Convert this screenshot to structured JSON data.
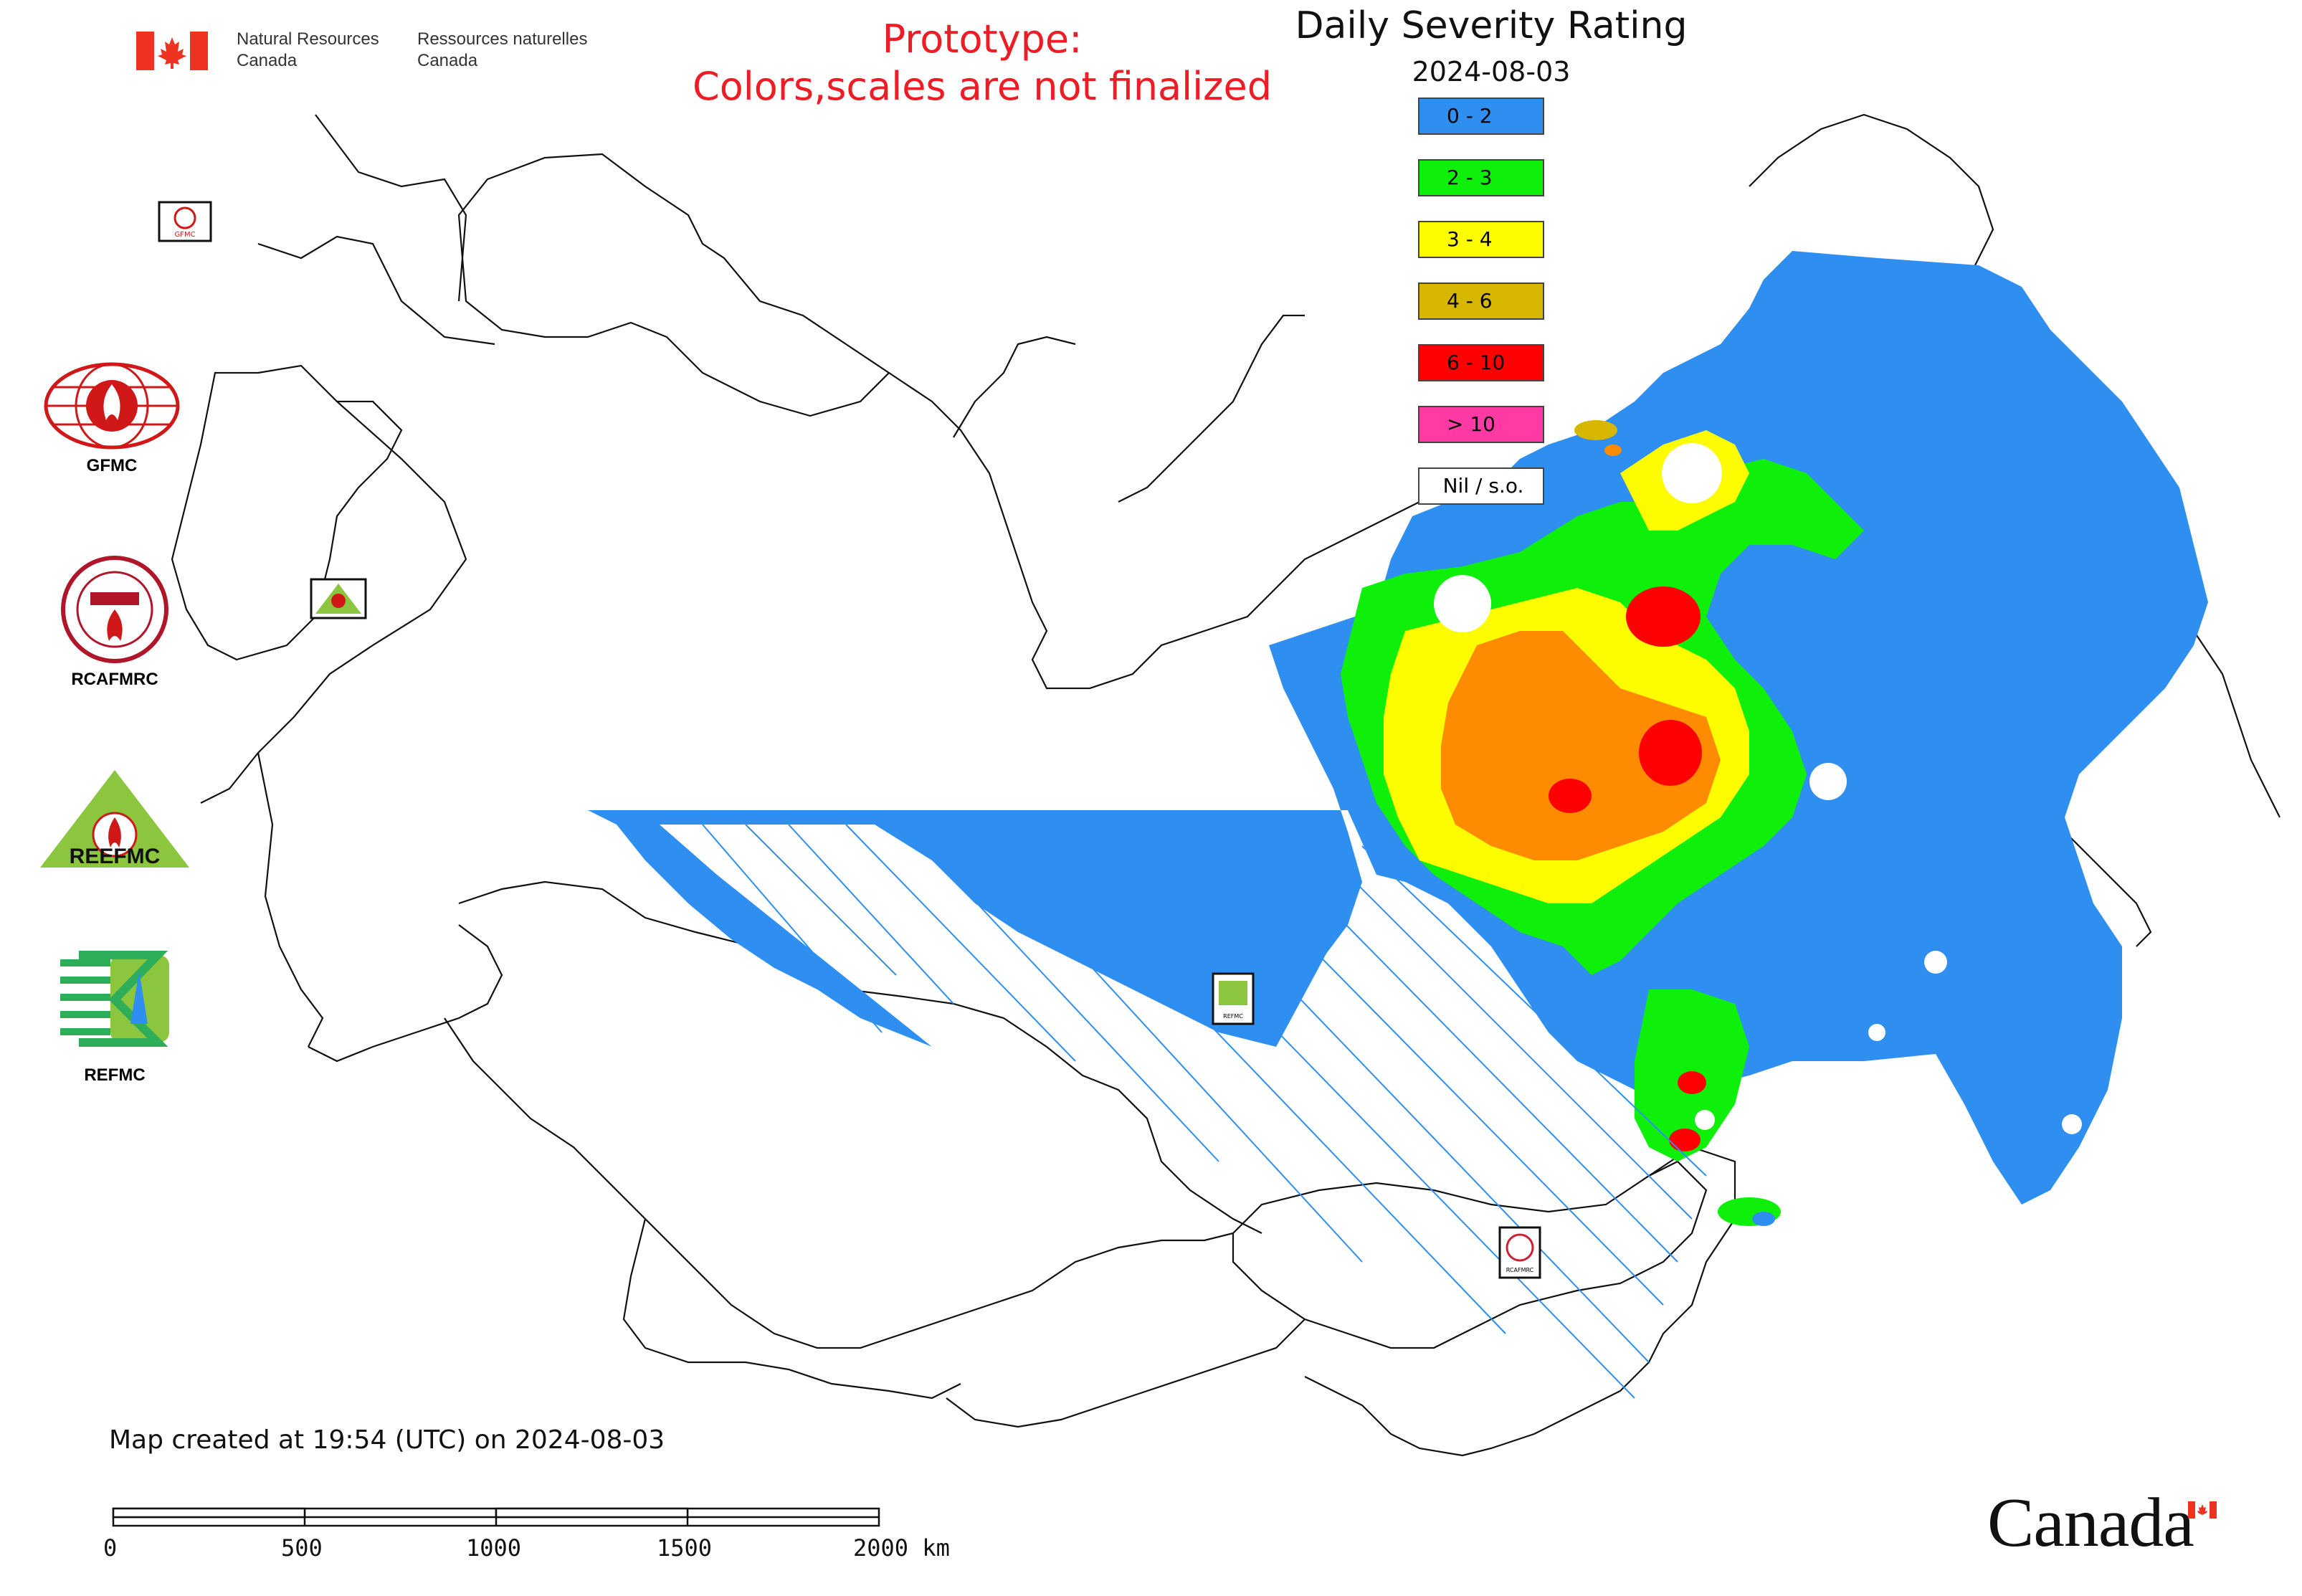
{
  "header": {
    "dept_en_line1": "Natural Resources",
    "dept_en_line2": "Canada",
    "dept_fr_line1": "Ressources naturelles",
    "dept_fr_line2": "Canada",
    "prototype_line1": "Prototype:",
    "prototype_line2": "Colors,scales are not finalized"
  },
  "legend": {
    "title": "Daily Severity Rating",
    "date": "2024-08-03",
    "items": [
      {
        "label": "0 - 2",
        "color": "#2e8ff0"
      },
      {
        "label": "2 - 3",
        "color": "#0ef00a"
      },
      {
        "label": "3 - 4",
        "color": "#fdfd00"
      },
      {
        "label": "4 - 6",
        "color": "#d7b600"
      },
      {
        "label": "6 - 10",
        "color": "#ff0000"
      },
      {
        "label": "> 10",
        "color": "#ff3aa5"
      },
      {
        "label": "Nil / s.o.",
        "color": "#ffffff"
      }
    ]
  },
  "logos": {
    "gfmc_caption": "GFMC",
    "rcafmrc_caption": "RCAFMRC",
    "reefmc_caption": "REEFMC",
    "refmc_caption": "REFMC",
    "reefmc_ring_text": "REEFMC"
  },
  "map_markers": {
    "gfmc_small": "GFMC",
    "reefmc_small": "REEFMC",
    "refmc_small": "REFMC",
    "rcafmrc_small": "RCAFMRC"
  },
  "footer": {
    "created_text": "Map created at 19:54 (UTC) on 2024-08-03",
    "scale_labels": [
      "0",
      "500",
      "1000",
      "1500",
      "2000 km"
    ],
    "wordmark": "Canada"
  },
  "colors": {
    "orange_band": "#ff8c00",
    "accent_red": "#ee1c25"
  }
}
